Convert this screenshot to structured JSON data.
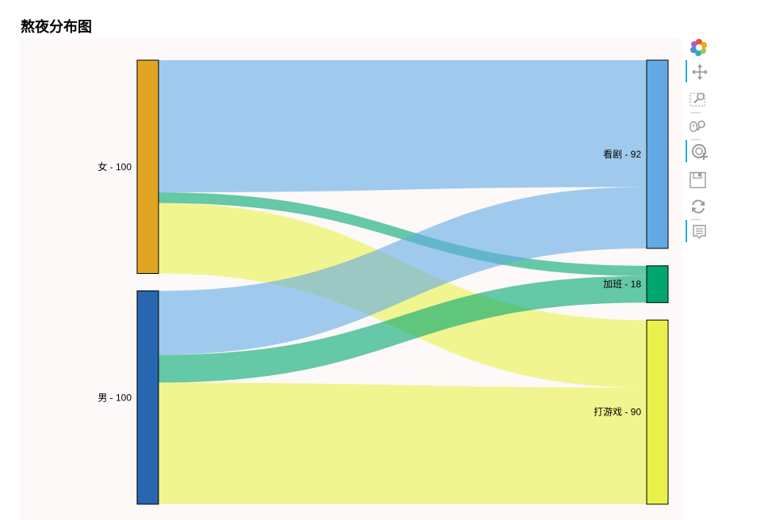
{
  "title": "熬夜分布图",
  "chart_data": {
    "type": "sankey",
    "title": "熬夜分布图",
    "nodes": [
      {
        "id": "女",
        "label": "女 - 100",
        "value": 100,
        "color": "#e0a623",
        "side": "left"
      },
      {
        "id": "男",
        "label": "男 - 100",
        "value": 100,
        "color": "#2866b0",
        "side": "left"
      },
      {
        "id": "看剧",
        "label": "看剧 - 92",
        "value": 92,
        "color": "#63aae5",
        "side": "right"
      },
      {
        "id": "加班",
        "label": "加班 - 18",
        "value": 18,
        "color": "#00a66e",
        "side": "right"
      },
      {
        "id": "打游戏",
        "label": "打游戏 - 90",
        "value": 90,
        "color": "#e9f14a",
        "side": "right"
      }
    ],
    "links": [
      {
        "source": "女",
        "target": "看剧",
        "value": 62
      },
      {
        "source": "女",
        "target": "加班",
        "value": 5
      },
      {
        "source": "女",
        "target": "打游戏",
        "value": 33
      },
      {
        "source": "男",
        "target": "看剧",
        "value": 30
      },
      {
        "source": "男",
        "target": "加班",
        "value": 13
      },
      {
        "source": "男",
        "target": "打游戏",
        "value": 57
      }
    ],
    "link_colors": {
      "看剧": "#63aae5",
      "加班": "#00a66e",
      "打游戏": "#e9f14a"
    }
  },
  "toolbar": {
    "tools": [
      "bokeh-logo",
      "pan-tool",
      "box-zoom-tool",
      "wheel-zoom-tool",
      "tap-tool",
      "save-tool",
      "reset-tool",
      "hover-tool"
    ]
  }
}
